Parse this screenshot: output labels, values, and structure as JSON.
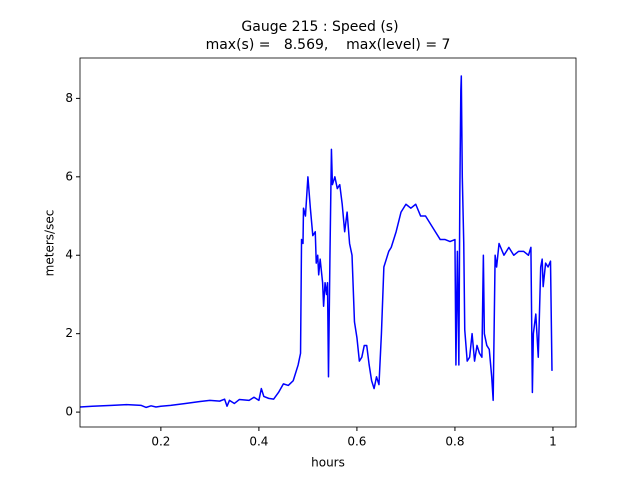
{
  "chart_data": {
    "type": "line",
    "title": "Gauge 215 : Speed (s)",
    "subtitle": "max(s) =   8.569,    max(level) = 7",
    "xlabel": "hours",
    "ylabel": "meters/sec",
    "x": [
      0.035,
      0.06,
      0.1,
      0.13,
      0.16,
      0.17,
      0.18,
      0.19,
      0.2,
      0.22,
      0.25,
      0.28,
      0.3,
      0.32,
      0.33,
      0.335,
      0.34,
      0.35,
      0.36,
      0.38,
      0.39,
      0.4,
      0.405,
      0.41,
      0.42,
      0.43,
      0.44,
      0.45,
      0.46,
      0.47,
      0.48,
      0.485,
      0.487,
      0.49,
      0.491,
      0.495,
      0.5,
      0.505,
      0.51,
      0.515,
      0.517,
      0.52,
      0.522,
      0.525,
      0.53,
      0.532,
      0.535,
      0.538,
      0.54,
      0.542,
      0.545,
      0.548,
      0.55,
      0.555,
      0.56,
      0.565,
      0.57,
      0.575,
      0.58,
      0.585,
      0.59,
      0.595,
      0.6,
      0.605,
      0.61,
      0.615,
      0.62,
      0.625,
      0.63,
      0.635,
      0.64,
      0.645,
      0.65,
      0.655,
      0.66,
      0.665,
      0.67,
      0.68,
      0.69,
      0.7,
      0.71,
      0.72,
      0.73,
      0.74,
      0.75,
      0.76,
      0.77,
      0.78,
      0.79,
      0.8,
      0.802,
      0.805,
      0.808,
      0.81,
      0.812,
      0.813,
      0.815,
      0.818,
      0.82,
      0.825,
      0.83,
      0.835,
      0.84,
      0.845,
      0.85,
      0.855,
      0.858,
      0.86,
      0.865,
      0.87,
      0.875,
      0.878,
      0.882,
      0.885,
      0.89,
      0.9,
      0.91,
      0.92,
      0.93,
      0.94,
      0.95,
      0.955,
      0.958,
      0.96,
      0.965,
      0.97,
      0.975,
      0.978,
      0.98,
      0.985,
      0.99,
      0.995,
      0.998
    ],
    "series": [
      {
        "name": "s",
        "color": "#0000ff",
        "values": [
          0.13,
          0.15,
          0.17,
          0.19,
          0.17,
          0.12,
          0.16,
          0.13,
          0.15,
          0.17,
          0.22,
          0.27,
          0.3,
          0.28,
          0.33,
          0.15,
          0.3,
          0.22,
          0.32,
          0.3,
          0.38,
          0.3,
          0.6,
          0.4,
          0.35,
          0.33,
          0.5,
          0.72,
          0.68,
          0.8,
          1.2,
          1.5,
          4.4,
          4.3,
          5.2,
          5.0,
          6.0,
          5.2,
          4.5,
          4.6,
          3.8,
          4.0,
          3.5,
          3.9,
          3.3,
          2.7,
          3.3,
          3.0,
          3.3,
          0.9,
          4.0,
          6.7,
          5.8,
          6.0,
          5.7,
          5.8,
          5.3,
          4.6,
          5.1,
          4.3,
          4.0,
          2.3,
          1.9,
          1.3,
          1.4,
          1.7,
          1.7,
          1.2,
          0.8,
          0.6,
          0.9,
          0.7,
          2.0,
          3.7,
          3.9,
          4.1,
          4.2,
          4.6,
          5.1,
          5.3,
          5.2,
          5.3,
          5.0,
          5.0,
          4.8,
          4.6,
          4.4,
          4.4,
          4.35,
          4.4,
          1.2,
          4.1,
          1.2,
          5.6,
          8.2,
          8.57,
          6.0,
          4.3,
          2.1,
          1.3,
          1.4,
          2.0,
          1.3,
          1.7,
          1.5,
          1.4,
          4.0,
          2.0,
          1.7,
          1.6,
          0.9,
          0.3,
          4.0,
          3.7,
          4.3,
          4.0,
          4.2,
          4.0,
          4.1,
          4.1,
          4.0,
          4.2,
          0.5,
          2.0,
          2.5,
          1.4,
          3.7,
          3.9,
          3.2,
          3.8,
          3.7,
          3.85,
          1.05
        ]
      }
    ],
    "xlim": [
      0.035,
      1.047
    ],
    "xticks": [
      0.2,
      0.4,
      0.6,
      0.8,
      1.0
    ],
    "ylim": [
      -0.38,
      9.03
    ],
    "yticks": [
      0,
      2,
      4,
      6,
      8
    ],
    "grid": false
  }
}
